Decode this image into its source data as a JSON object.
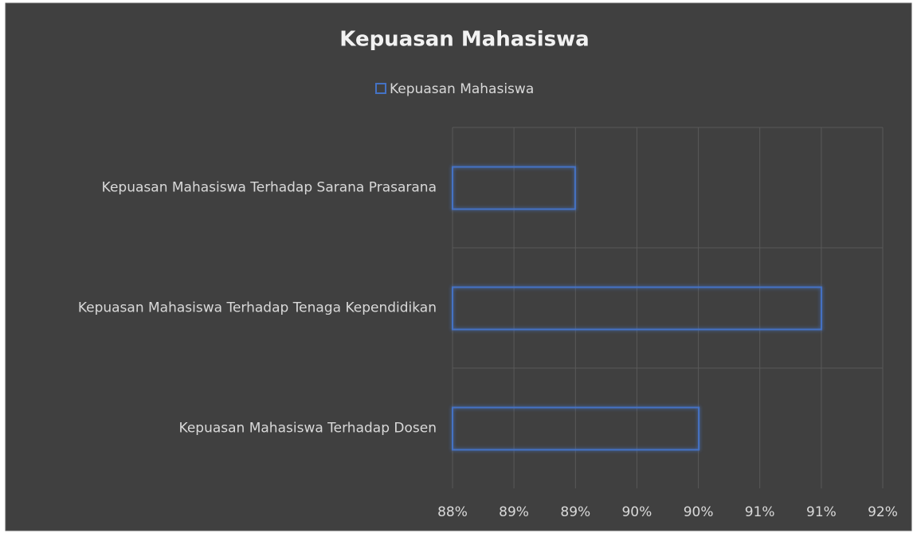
{
  "chart_data": {
    "type": "barh",
    "title": "Kepuasan Mahasiswa",
    "categories": [
      "Kepuasan Mahasiswa Terhadap Sarana Prasarana",
      "Kepuasan Mahasiswa Terhadap Tenaga Kependidikan",
      "Kepuasan Mahasiswa Terhadap Dosen"
    ],
    "series": [
      {
        "name": "Kepuasan Mahasiswa",
        "color": "#4472c4",
        "values": [
          89.14,
          91.43,
          90.29
        ]
      }
    ],
    "xlim": [
      88,
      92
    ],
    "xticks": [
      {
        "value": 88,
        "label": "88%"
      },
      {
        "value": 88.571,
        "label": "89%"
      },
      {
        "value": 89.143,
        "label": "89%"
      },
      {
        "value": 89.714,
        "label": "90%"
      },
      {
        "value": 90.286,
        "label": "90%"
      },
      {
        "value": 90.857,
        "label": "91%"
      },
      {
        "value": 91.429,
        "label": "91%"
      },
      {
        "value": 92,
        "label": "92%"
      }
    ],
    "grid": true,
    "legend": "top"
  }
}
